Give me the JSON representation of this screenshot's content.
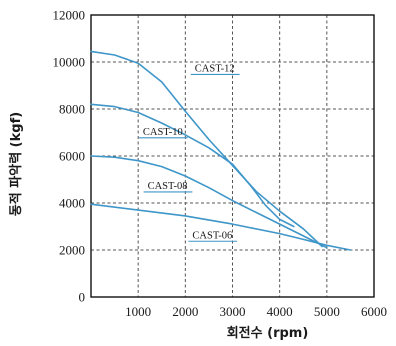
{
  "chart_data": {
    "type": "line",
    "xlabel": "회전수 (rpm)",
    "ylabel": "동적 파악력 (kgf)",
    "xlim": [
      0,
      6000
    ],
    "ylim": [
      0,
      12000
    ],
    "x_ticks": [
      "1000",
      "2000",
      "3000",
      "4000",
      "5000",
      "6000"
    ],
    "y_ticks": [
      "0",
      "2000",
      "4000",
      "6000",
      "8000",
      "10000",
      "12000"
    ],
    "grid": true,
    "series": [
      {
        "name": "CAST-12",
        "label_at": [
          2200,
          9600
        ],
        "points": [
          [
            0,
            10450
          ],
          [
            500,
            10300
          ],
          [
            1000,
            9950
          ],
          [
            1500,
            9150
          ],
          [
            2000,
            7900
          ],
          [
            2500,
            6700
          ],
          [
            3000,
            5600
          ],
          [
            3500,
            4500
          ],
          [
            4000,
            3650
          ],
          [
            4500,
            2900
          ],
          [
            4900,
            2150
          ]
        ]
      },
      {
        "name": "CAST-10",
        "label_at": [
          1100,
          6900
        ],
        "points": [
          [
            0,
            8200
          ],
          [
            500,
            8100
          ],
          [
            1000,
            7850
          ],
          [
            1500,
            7400
          ],
          [
            2000,
            6900
          ],
          [
            2500,
            6350
          ],
          [
            3000,
            5650
          ],
          [
            3400,
            4700
          ],
          [
            3700,
            3900
          ],
          [
            4000,
            3300
          ],
          [
            4300,
            3000
          ]
        ]
      },
      {
        "name": "CAST-08",
        "label_at": [
          1200,
          4600
        ],
        "points": [
          [
            0,
            6000
          ],
          [
            500,
            5950
          ],
          [
            1000,
            5800
          ],
          [
            1500,
            5550
          ],
          [
            2000,
            5150
          ],
          [
            2500,
            4650
          ],
          [
            3000,
            4100
          ],
          [
            3500,
            3600
          ],
          [
            4000,
            3100
          ],
          [
            4500,
            2600
          ],
          [
            5000,
            2100
          ]
        ]
      },
      {
        "name": "CAST-06",
        "label_at": [
          2150,
          2500
        ],
        "points": [
          [
            0,
            3950
          ],
          [
            1000,
            3700
          ],
          [
            2000,
            3450
          ],
          [
            3000,
            3100
          ],
          [
            4000,
            2700
          ],
          [
            4500,
            2450
          ],
          [
            5000,
            2200
          ],
          [
            5500,
            2000
          ]
        ]
      }
    ]
  }
}
